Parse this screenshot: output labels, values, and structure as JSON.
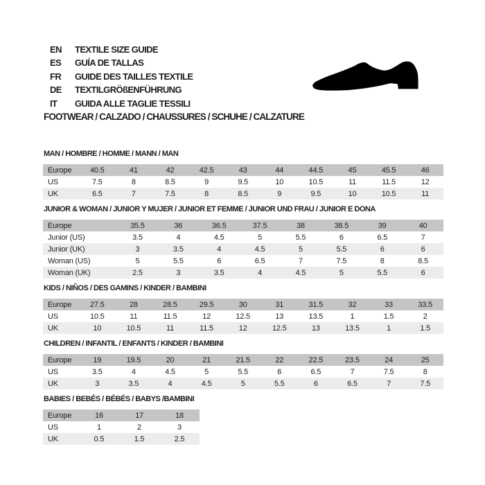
{
  "header": {
    "languages": [
      {
        "code": "EN",
        "label": "TEXTILE SIZE GUIDE"
      },
      {
        "code": "ES",
        "label": "GUÍA DE TALLAS"
      },
      {
        "code": "FR",
        "label": "GUIDE DES TAILLES TEXTILE"
      },
      {
        "code": "DE",
        "label": "TEXTILGRÖßENFÜHRUNG"
      },
      {
        "code": "IT",
        "label": "GUIDA ALLE TAGLIE TESSILI"
      }
    ],
    "category_line": "FOOTWEAR / CALZADO / CHAUSSURES / SCHUHE / CALZATURE",
    "icon": "dress-shoe-icon"
  },
  "colors": {
    "header_row": "#c5c5c5",
    "alt_row": "#ececec",
    "text": "#1c1c1c",
    "shoe": "#000000",
    "background": "#ffffff"
  },
  "tables": [
    {
      "title": "MAN / HOMBRE / HOMME / MANN / MAN",
      "rows": [
        {
          "label": "Europe",
          "values": [
            "40.5",
            "41",
            "42",
            "42.5",
            "43",
            "44",
            "44.5",
            "45",
            "45.5",
            "46"
          ]
        },
        {
          "label": "US",
          "values": [
            "7.5",
            "8",
            "8.5",
            "9",
            "9.5",
            "10",
            "10.5",
            "11",
            "11.5",
            "12"
          ]
        },
        {
          "label": "UK",
          "values": [
            "6.5",
            "7",
            "7.5",
            "8",
            "8.5",
            "9",
            "9.5",
            "10",
            "10.5",
            "11"
          ]
        }
      ]
    },
    {
      "title": "JUNIOR & WOMAN / JUNIOR Y MUJER / JUNIOR ET FEMME / JUNIOR UND FRAU / JUNIOR E DONA",
      "rows": [
        {
          "label": "Europe",
          "values": [
            "35.5",
            "36",
            "36.5",
            "37.5",
            "38",
            "38.5",
            "39",
            "40"
          ]
        },
        {
          "label": "Junior (US)",
          "values": [
            "3.5",
            "4",
            "4.5",
            "5",
            "5.5",
            "6",
            "6.5",
            "7"
          ]
        },
        {
          "label": "Junior (UK)",
          "values": [
            "3",
            "3.5",
            "4",
            "4.5",
            "5",
            "5.5",
            "6",
            "6"
          ]
        },
        {
          "label": "Woman (US)",
          "values": [
            "5",
            "5.5",
            "6",
            "6.5",
            "7",
            "7.5",
            "8",
            "8.5"
          ]
        },
        {
          "label": "Woman (UK)",
          "values": [
            "2.5",
            "3",
            "3.5",
            "4",
            "4.5",
            "5",
            "5.5",
            "6"
          ]
        }
      ]
    },
    {
      "title": "KIDS / NIÑOS / DES GAMINS / KINDER / BAMBINI",
      "rows": [
        {
          "label": "Europe",
          "values": [
            "27.5",
            "28",
            "28.5",
            "29.5",
            "30",
            "31",
            "31.5",
            "32",
            "33",
            "33.5"
          ]
        },
        {
          "label": "US",
          "values": [
            "10.5",
            "11",
            "11.5",
            "12",
            "12.5",
            "13",
            "13.5",
            "1",
            "1.5",
            "2"
          ]
        },
        {
          "label": "UK",
          "values": [
            "10",
            "10.5",
            "11",
            "11.5",
            "12",
            "12.5",
            "13",
            "13.5",
            "1",
            "1.5"
          ]
        }
      ]
    },
    {
      "title": "CHILDREN / INFANTIL / ENFANTS / KINDER / BAMBINI",
      "rows": [
        {
          "label": "Europe",
          "values": [
            "19",
            "19.5",
            "20",
            "21",
            "21.5",
            "22",
            "22.5",
            "23.5",
            "24",
            "25"
          ]
        },
        {
          "label": "US",
          "values": [
            "3.5",
            "4",
            "4.5",
            "5",
            "5.5",
            "6",
            "6.5",
            "7",
            "7.5",
            "8"
          ]
        },
        {
          "label": "UK",
          "values": [
            "3",
            "3.5",
            "4",
            "4.5",
            "5",
            "5.5",
            "6",
            "6.5",
            "7",
            "7.5"
          ]
        }
      ]
    },
    {
      "title": "BABIES / BEBÉS / BÉBÉS / BABYS /BAMBINI",
      "rows": [
        {
          "label": "Europe",
          "values": [
            "16",
            "17",
            "18"
          ]
        },
        {
          "label": "US",
          "values": [
            "1",
            "2",
            "3"
          ]
        },
        {
          "label": "UK",
          "values": [
            "0.5",
            "1.5",
            "2.5"
          ]
        }
      ]
    }
  ]
}
